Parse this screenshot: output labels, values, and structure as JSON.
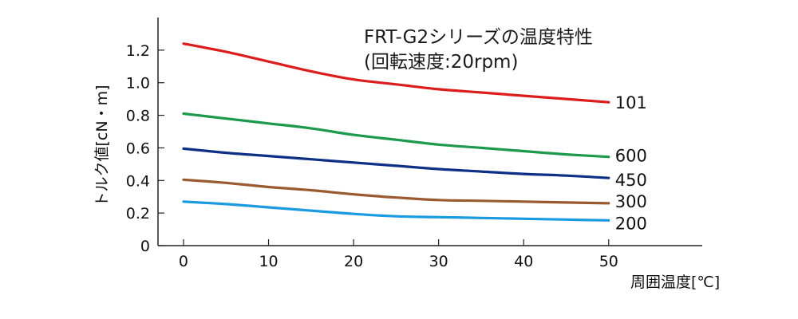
{
  "chart_data": {
    "type": "line",
    "title": "FRT-G2シリーズの温度特性",
    "subtitle": "(回転速度:20rpm)",
    "xlabel": "周囲温度[℃]",
    "ylabel": "トルク値[cN・m]",
    "x": [
      0,
      5,
      10,
      15,
      20,
      25,
      30,
      35,
      40,
      45,
      50
    ],
    "xlim": [
      -3,
      61
    ],
    "ylim": [
      0,
      1.4
    ],
    "xticks": [
      0,
      10,
      20,
      30,
      40,
      50
    ],
    "yticks": [
      0,
      0.2,
      0.4,
      0.6,
      0.8,
      1.0,
      1.2
    ],
    "ytick_labels": [
      "0",
      "0.2",
      "0.4",
      "0.6",
      "0.8",
      "1.0",
      "1.2"
    ],
    "grid": false,
    "legend": "end-of-line labels",
    "series": [
      {
        "name": "101",
        "color": "#dd1c1c",
        "values": [
          1.24,
          1.19,
          1.13,
          1.07,
          1.02,
          0.99,
          0.96,
          0.94,
          0.92,
          0.9,
          0.88
        ]
      },
      {
        "name": "600",
        "color": "#1b9a4b",
        "values": [
          0.81,
          0.78,
          0.75,
          0.72,
          0.68,
          0.65,
          0.62,
          0.6,
          0.58,
          0.56,
          0.545
        ]
      },
      {
        "name": "450",
        "color": "#0e2f86",
        "values": [
          0.595,
          0.57,
          0.55,
          0.53,
          0.51,
          0.49,
          0.47,
          0.455,
          0.44,
          0.43,
          0.415
        ]
      },
      {
        "name": "300",
        "color": "#9a5a30",
        "values": [
          0.405,
          0.385,
          0.36,
          0.34,
          0.315,
          0.295,
          0.28,
          0.275,
          0.27,
          0.265,
          0.26
        ]
      },
      {
        "name": "200",
        "color": "#1a9ae0",
        "values": [
          0.27,
          0.255,
          0.235,
          0.215,
          0.195,
          0.18,
          0.175,
          0.17,
          0.165,
          0.16,
          0.155
        ]
      }
    ]
  }
}
